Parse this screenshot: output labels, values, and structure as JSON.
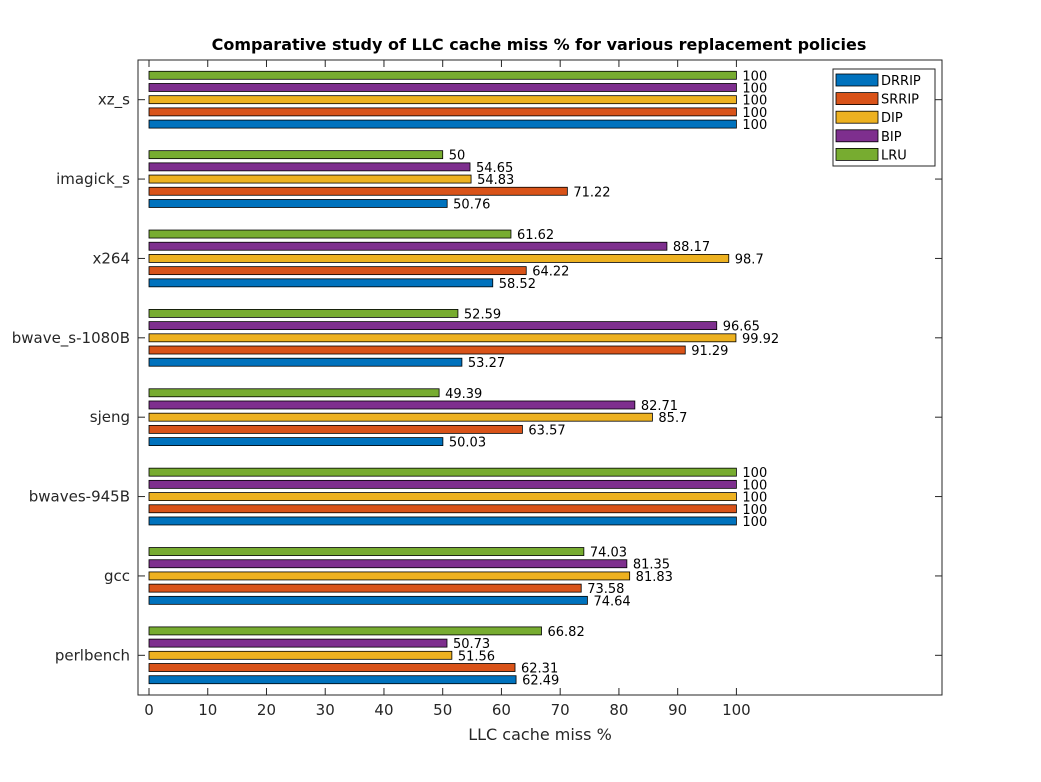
{
  "chart_data": {
    "type": "bar",
    "orientation": "horizontal",
    "title": "Comparative study of LLC cache miss % for various replacement policies",
    "xlabel": "LLC cache miss %",
    "ylabel": "",
    "xlim": [
      0,
      135
    ],
    "xticks": [
      0,
      10,
      20,
      30,
      40,
      50,
      60,
      70,
      80,
      90,
      100
    ],
    "grid": false,
    "legend_position": "top-right",
    "categories": [
      "perlbench",
      "gcc",
      "bwaves-945B",
      "sjeng",
      "bwave_s-1080B",
      "x264",
      "imagick_s",
      "xz_s"
    ],
    "series": [
      {
        "name": "DRRIP",
        "color": "#0072BD",
        "values": [
          62.49,
          74.64,
          100,
          50.03,
          53.27,
          58.52,
          50.76,
          100
        ]
      },
      {
        "name": "SRRIP",
        "color": "#D95319",
        "values": [
          62.31,
          73.58,
          100,
          63.57,
          91.29,
          64.22,
          71.22,
          100
        ]
      },
      {
        "name": "DIP",
        "color": "#EDB120",
        "values": [
          51.56,
          81.83,
          100,
          85.7,
          99.92,
          98.7,
          54.83,
          100
        ]
      },
      {
        "name": "BIP",
        "color": "#7E2F8E",
        "values": [
          50.73,
          81.35,
          100,
          82.71,
          96.65,
          88.17,
          54.65,
          100
        ]
      },
      {
        "name": "LRU",
        "color": "#77AC30",
        "values": [
          66.82,
          74.03,
          100,
          49.39,
          52.59,
          61.62,
          50,
          100
        ]
      }
    ],
    "data_labels": [
      [
        "62.49",
        "74.64",
        "100",
        "50.03",
        "53.27",
        "58.52",
        "50.76",
        "100"
      ],
      [
        "62.31",
        "73.58",
        "100",
        "63.57",
        "91.29",
        "64.22",
        "71.22",
        "100"
      ],
      [
        "51.56",
        "81.83",
        "100",
        "85.7",
        "99.92",
        "98.7",
        "54.83",
        "100"
      ],
      [
        "50.73",
        "81.35",
        "100",
        "82.71",
        "96.65",
        "88.17",
        "54.65",
        "100"
      ],
      [
        "66.82",
        "74.03",
        "100",
        "49.39",
        "52.59",
        "61.62",
        "50",
        "100"
      ]
    ]
  }
}
